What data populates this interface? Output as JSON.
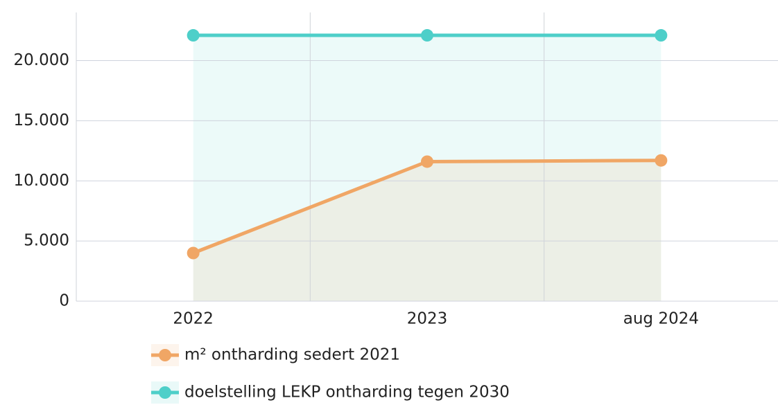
{
  "chart_data": {
    "type": "line",
    "categories": [
      "2022",
      "2023",
      "aug 2024"
    ],
    "series": [
      {
        "name": "m² ontharding sedert 2021",
        "color": "#f0a665",
        "values": [
          4000,
          11600,
          11700
        ]
      },
      {
        "name": "doelstelling LEKP ontharding tegen 2030",
        "color": "#4ecfc9",
        "values": [
          22100,
          22100,
          22100
        ]
      }
    ],
    "ylim": [
      0,
      24000
    ],
    "yticks": [
      0,
      {
        "value": 5000,
        "label": "5.000"
      },
      {
        "value": 10000,
        "label": "10.000"
      },
      {
        "value": 15000,
        "label": "15.000"
      },
      {
        "value": 20000,
        "label": "20.000"
      }
    ],
    "grid": true
  }
}
